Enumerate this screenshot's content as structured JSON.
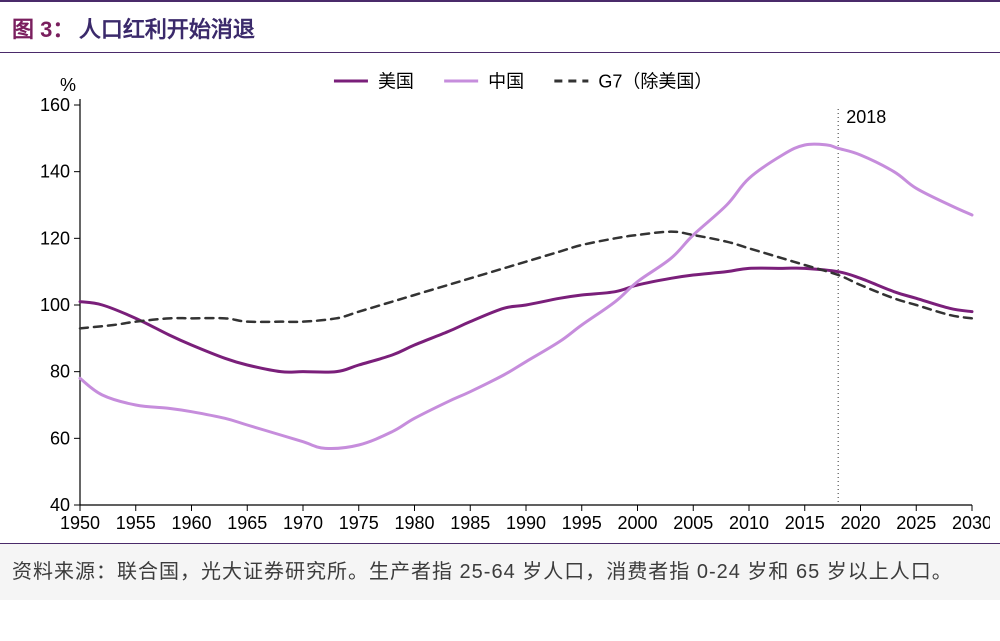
{
  "title": {
    "prefix": "图 3：",
    "text": "人口红利开始消退",
    "prefix_color": "#7a1f5e",
    "text_color": "#3b2a6b"
  },
  "chart": {
    "type": "line",
    "background_color": "#ffffff",
    "y_unit_label": "%",
    "xlim": [
      1950,
      2030
    ],
    "ylim": [
      40,
      160
    ],
    "xtick_step": 5,
    "ytick_step": 20,
    "x_ticks": [
      1950,
      1955,
      1960,
      1965,
      1970,
      1975,
      1980,
      1985,
      1990,
      1995,
      2000,
      2005,
      2010,
      2015,
      2020,
      2025,
      2030
    ],
    "y_ticks": [
      40,
      60,
      80,
      100,
      120,
      140,
      160
    ],
    "axis_color": "#000000",
    "tick_fontsize": 18,
    "annotation": {
      "x": 2018,
      "label": "2018",
      "line_color": "#555555",
      "line_dash": "1,3",
      "line_width": 1.2,
      "label_fontsize": 18
    },
    "legend": {
      "position": "top-center",
      "fontsize": 18
    },
    "series": [
      {
        "name": "美国",
        "color": "#7a1f7a",
        "line_width": 3,
        "dash": null,
        "legend_style": "line",
        "data": [
          [
            1950,
            101
          ],
          [
            1952,
            100
          ],
          [
            1955,
            96
          ],
          [
            1958,
            91
          ],
          [
            1960,
            88
          ],
          [
            1963,
            84
          ],
          [
            1965,
            82
          ],
          [
            1968,
            80
          ],
          [
            1970,
            80
          ],
          [
            1973,
            80
          ],
          [
            1975,
            82
          ],
          [
            1978,
            85
          ],
          [
            1980,
            88
          ],
          [
            1983,
            92
          ],
          [
            1985,
            95
          ],
          [
            1988,
            99
          ],
          [
            1990,
            100
          ],
          [
            1993,
            102
          ],
          [
            1995,
            103
          ],
          [
            1998,
            104
          ],
          [
            2000,
            106
          ],
          [
            2003,
            108
          ],
          [
            2005,
            109
          ],
          [
            2008,
            110
          ],
          [
            2010,
            111
          ],
          [
            2013,
            111
          ],
          [
            2015,
            111
          ],
          [
            2018,
            110
          ],
          [
            2020,
            108
          ],
          [
            2023,
            104
          ],
          [
            2025,
            102
          ],
          [
            2028,
            99
          ],
          [
            2030,
            98
          ]
        ]
      },
      {
        "name": "中国",
        "color": "#c68ddc",
        "line_width": 3,
        "dash": null,
        "legend_style": "line",
        "data": [
          [
            1950,
            78
          ],
          [
            1952,
            73
          ],
          [
            1955,
            70
          ],
          [
            1958,
            69
          ],
          [
            1960,
            68
          ],
          [
            1963,
            66
          ],
          [
            1965,
            64
          ],
          [
            1968,
            61
          ],
          [
            1970,
            59
          ],
          [
            1972,
            57
          ],
          [
            1975,
            58
          ],
          [
            1978,
            62
          ],
          [
            1980,
            66
          ],
          [
            1983,
            71
          ],
          [
            1985,
            74
          ],
          [
            1988,
            79
          ],
          [
            1990,
            83
          ],
          [
            1993,
            89
          ],
          [
            1995,
            94
          ],
          [
            1998,
            101
          ],
          [
            2000,
            107
          ],
          [
            2003,
            114
          ],
          [
            2005,
            121
          ],
          [
            2008,
            130
          ],
          [
            2010,
            138
          ],
          [
            2013,
            145
          ],
          [
            2015,
            148
          ],
          [
            2017,
            148
          ],
          [
            2018,
            147
          ],
          [
            2020,
            145
          ],
          [
            2023,
            140
          ],
          [
            2025,
            135
          ],
          [
            2028,
            130
          ],
          [
            2030,
            127
          ]
        ]
      },
      {
        "name": "G7（除美国）",
        "color": "#333333",
        "line_width": 2.5,
        "dash": "8,6",
        "legend_style": "dash",
        "data": [
          [
            1950,
            93
          ],
          [
            1953,
            94
          ],
          [
            1955,
            95
          ],
          [
            1958,
            96
          ],
          [
            1960,
            96
          ],
          [
            1963,
            96
          ],
          [
            1965,
            95
          ],
          [
            1968,
            95
          ],
          [
            1970,
            95
          ],
          [
            1973,
            96
          ],
          [
            1975,
            98
          ],
          [
            1978,
            101
          ],
          [
            1980,
            103
          ],
          [
            1983,
            106
          ],
          [
            1985,
            108
          ],
          [
            1988,
            111
          ],
          [
            1990,
            113
          ],
          [
            1993,
            116
          ],
          [
            1995,
            118
          ],
          [
            1998,
            120
          ],
          [
            2000,
            121
          ],
          [
            2003,
            122
          ],
          [
            2005,
            121
          ],
          [
            2008,
            119
          ],
          [
            2010,
            117
          ],
          [
            2013,
            114
          ],
          [
            2015,
            112
          ],
          [
            2018,
            109
          ],
          [
            2020,
            106
          ],
          [
            2023,
            102
          ],
          [
            2025,
            100
          ],
          [
            2028,
            97
          ],
          [
            2030,
            96
          ]
        ]
      }
    ]
  },
  "footer": {
    "text": "资料来源：联合国，光大证券研究所。生产者指 25-64 岁人口，消费者指 0-24 岁和 65 岁以上人口。",
    "fontsize": 20,
    "color": "#3c3c3c",
    "background": "#f5f5f5"
  }
}
